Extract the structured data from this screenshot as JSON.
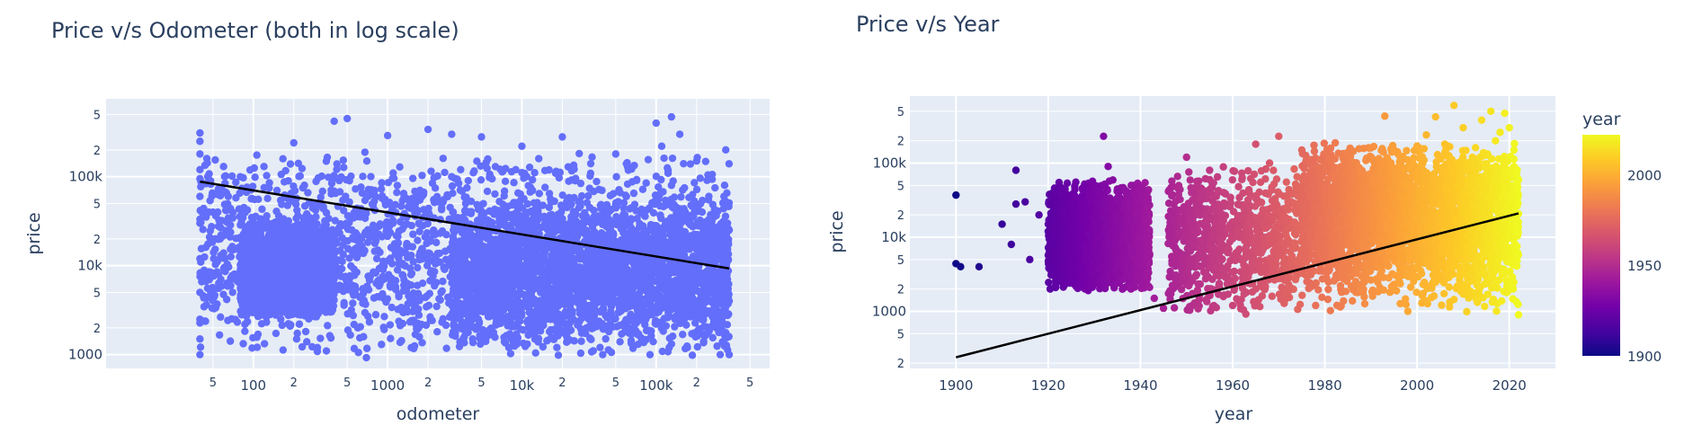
{
  "chart_data": [
    {
      "type": "scatter",
      "title": "Price v/s Odometer (both in log scale)",
      "xlabel": "odometer",
      "ylabel": "price",
      "x_scale": "log",
      "y_scale": "log",
      "xlim": [
        8,
        700000
      ],
      "ylim": [
        700,
        750000
      ],
      "grid": true,
      "marker_color": "#636efa",
      "x_ticks": [
        {
          "v": 50,
          "t": "5"
        },
        {
          "v": 100,
          "t": "100"
        },
        {
          "v": 200,
          "t": "2"
        },
        {
          "v": 500,
          "t": "5"
        },
        {
          "v": 1000,
          "t": "1000"
        },
        {
          "v": 2000,
          "t": "2"
        },
        {
          "v": 5000,
          "t": "5"
        },
        {
          "v": 10000,
          "t": "10k"
        },
        {
          "v": 20000,
          "t": "2"
        },
        {
          "v": 50000,
          "t": "5"
        },
        {
          "v": 100000,
          "t": "100k"
        },
        {
          "v": 200000,
          "t": "2"
        },
        {
          "v": 500000,
          "t": "5"
        }
      ],
      "y_ticks": [
        {
          "v": 1000,
          "t": "1000"
        },
        {
          "v": 2000,
          "t": "2"
        },
        {
          "v": 5000,
          "t": "5"
        },
        {
          "v": 10000,
          "t": "10k"
        },
        {
          "v": 20000,
          "t": "2"
        },
        {
          "v": 50000,
          "t": "5"
        },
        {
          "v": 100000,
          "t": "100k"
        },
        {
          "v": 200000,
          "t": "2"
        },
        {
          "v": 500000,
          "t": "5"
        }
      ],
      "trendline": {
        "x": [
          40,
          350000
        ],
        "y": [
          88000,
          9300
        ],
        "color": "#000000"
      },
      "points": [
        [
          40,
          310000
        ],
        [
          40,
          250000
        ],
        [
          40,
          180000
        ],
        [
          40,
          120000
        ],
        [
          40,
          95000
        ],
        [
          40,
          60000
        ],
        [
          40,
          30000
        ],
        [
          40,
          12000
        ],
        [
          40,
          5000
        ],
        [
          40,
          2500
        ],
        [
          40,
          1500
        ],
        [
          40,
          1000
        ],
        [
          45,
          160000
        ],
        [
          48,
          90000
        ],
        [
          50,
          40000
        ],
        [
          52,
          20000
        ],
        [
          55,
          8000
        ],
        [
          60,
          130000
        ],
        [
          65,
          60000
        ],
        [
          70,
          15000
        ],
        [
          75,
          7000
        ],
        [
          80,
          100000
        ],
        [
          85,
          45000
        ],
        [
          90,
          22000
        ],
        [
          95,
          9000
        ],
        [
          100,
          6000
        ],
        [
          110,
          4000
        ],
        [
          120,
          12000
        ],
        [
          130,
          3000
        ],
        [
          140,
          8000
        ],
        [
          150,
          5000
        ],
        [
          160,
          2500
        ],
        [
          170,
          14000
        ],
        [
          180,
          7000
        ],
        [
          190,
          4500
        ],
        [
          200,
          240000
        ],
        [
          210,
          1500
        ],
        [
          220,
          2200
        ],
        [
          230,
          9000
        ],
        [
          240,
          6000
        ],
        [
          250,
          30000
        ],
        [
          270,
          3000
        ],
        [
          300,
          1200
        ],
        [
          330,
          3500
        ],
        [
          350,
          1100
        ],
        [
          400,
          420000
        ],
        [
          500,
          450000
        ],
        [
          520,
          90000
        ],
        [
          550,
          20000
        ],
        [
          600,
          2000
        ],
        [
          700,
          150000
        ],
        [
          800,
          70000
        ],
        [
          900,
          1300
        ],
        [
          1000,
          290000
        ],
        [
          1100,
          110000
        ],
        [
          1200,
          18000
        ],
        [
          1300,
          3000
        ],
        [
          1500,
          1200
        ],
        [
          1800,
          60000
        ],
        [
          2000,
          340000
        ],
        [
          2200,
          25000
        ],
        [
          2500,
          5000
        ],
        [
          3000,
          300000
        ],
        [
          3500,
          120000
        ],
        [
          4000,
          2500
        ],
        [
          5000,
          280000
        ],
        [
          6000,
          40000
        ],
        [
          7000,
          8000
        ],
        [
          8000,
          1200
        ],
        [
          10000,
          220000
        ],
        [
          12000,
          70000
        ],
        [
          15000,
          15000
        ],
        [
          18000,
          3000
        ],
        [
          20000,
          280000
        ],
        [
          25000,
          90000
        ],
        [
          30000,
          25000
        ],
        [
          35000,
          5000
        ],
        [
          40000,
          1000
        ],
        [
          50000,
          180000
        ],
        [
          60000,
          60000
        ],
        [
          70000,
          12000
        ],
        [
          80000,
          2500
        ],
        [
          90000,
          1000
        ],
        [
          100000,
          400000
        ],
        [
          110000,
          220000
        ],
        [
          130000,
          80000
        ],
        [
          150000,
          20000
        ],
        [
          170000,
          5000
        ],
        [
          200000,
          150000
        ],
        [
          220000,
          40000
        ],
        [
          250000,
          9000
        ],
        [
          280000,
          2000
        ],
        [
          300000,
          1000
        ],
        [
          320000,
          60000
        ],
        [
          330000,
          200000
        ],
        [
          340000,
          30000
        ],
        [
          350000,
          4000
        ],
        [
          350000,
          1000
        ],
        [
          130000,
          470000
        ],
        [
          150000,
          300000
        ],
        [
          160000,
          140000
        ],
        [
          60000,
          140000
        ],
        [
          9000,
          120000
        ],
        [
          3000,
          100000
        ],
        [
          700,
          60000
        ],
        [
          300,
          50000
        ],
        [
          150,
          70000
        ],
        [
          120,
          130000
        ]
      ],
      "clouds": [
        {
          "x": [
            40,
            350000
          ],
          "y": [
            900,
            200000
          ]
        },
        {
          "x": [
            80,
            400
          ],
          "y": [
            2500,
            35000
          ]
        },
        {
          "x": [
            3000,
            350000
          ],
          "y": [
            1000,
            60000
          ]
        }
      ]
    },
    {
      "type": "scatter",
      "title": "Price v/s Year",
      "xlabel": "year",
      "ylabel": "price",
      "y_scale": "log",
      "xlim": [
        1890,
        2030
      ],
      "ylim": [
        170,
        800000
      ],
      "grid": true,
      "x_ticks": [
        {
          "v": 1900,
          "t": "1900"
        },
        {
          "v": 1920,
          "t": "1920"
        },
        {
          "v": 1940,
          "t": "1940"
        },
        {
          "v": 1960,
          "t": "1960"
        },
        {
          "v": 1980,
          "t": "1980"
        },
        {
          "v": 2000,
          "t": "2000"
        },
        {
          "v": 2020,
          "t": "2020"
        }
      ],
      "y_ticks": [
        {
          "v": 200,
          "t": "2"
        },
        {
          "v": 500,
          "t": "5"
        },
        {
          "v": 1000,
          "t": "1000"
        },
        {
          "v": 2000,
          "t": "2"
        },
        {
          "v": 5000,
          "t": "5"
        },
        {
          "v": 10000,
          "t": "10k"
        },
        {
          "v": 20000,
          "t": "2"
        },
        {
          "v": 50000,
          "t": "5"
        },
        {
          "v": 100000,
          "t": "100k"
        },
        {
          "v": 200000,
          "t": "2"
        },
        {
          "v": 500000,
          "t": "5"
        }
      ],
      "trendline": {
        "x": [
          1900,
          2022
        ],
        "y": [
          240,
          21000
        ],
        "color": "#000000"
      },
      "colorbar": {
        "title": "year",
        "range": [
          1900,
          2022
        ],
        "ticks": [
          {
            "v": 1900,
            "t": "1900"
          },
          {
            "v": 1950,
            "t": "1950"
          },
          {
            "v": 2000,
            "t": "2000"
          }
        ],
        "colors": [
          "#0d0887",
          "#46039f",
          "#7201a8",
          "#9c179e",
          "#bd3786",
          "#d8576b",
          "#ed7953",
          "#fb9f3a",
          "#fdca26",
          "#f0f921"
        ]
      },
      "points": [
        [
          1900,
          37000
        ],
        [
          1900,
          4400
        ],
        [
          1901,
          4000
        ],
        [
          1905,
          4000
        ],
        [
          1910,
          15000
        ],
        [
          1912,
          8000
        ],
        [
          1913,
          80000
        ],
        [
          1913,
          28000
        ],
        [
          1915,
          30000
        ],
        [
          1916,
          5000
        ],
        [
          1918,
          20000
        ],
        [
          1920,
          12000
        ],
        [
          1922,
          25000
        ],
        [
          1924,
          8000
        ],
        [
          1925,
          2500
        ],
        [
          1928,
          2000
        ],
        [
          1930,
          6000
        ],
        [
          1932,
          230000
        ],
        [
          1933,
          90000
        ],
        [
          1935,
          3500
        ],
        [
          1938,
          50000
        ],
        [
          1941,
          15000
        ],
        [
          1943,
          1500
        ],
        [
          1945,
          1100
        ],
        [
          1948,
          6000
        ],
        [
          1950,
          120000
        ],
        [
          1952,
          3000
        ],
        [
          1955,
          80000
        ],
        [
          1958,
          40000
        ],
        [
          1960,
          1200
        ],
        [
          1962,
          60000
        ],
        [
          1965,
          180000
        ],
        [
          1968,
          100000
        ],
        [
          1970,
          230000
        ],
        [
          1972,
          30000
        ],
        [
          1975,
          150000
        ],
        [
          1978,
          1200
        ],
        [
          1980,
          90000
        ],
        [
          1985,
          140000
        ],
        [
          1988,
          20000
        ],
        [
          1990,
          160000
        ],
        [
          1993,
          430000
        ],
        [
          1995,
          150000
        ],
        [
          1998,
          1000
        ],
        [
          2000,
          170000
        ],
        [
          2002,
          240000
        ],
        [
          2004,
          420000
        ],
        [
          2006,
          180000
        ],
        [
          2008,
          600000
        ],
        [
          2010,
          300000
        ],
        [
          2012,
          120000
        ],
        [
          2014,
          380000
        ],
        [
          2016,
          500000
        ],
        [
          2017,
          200000
        ],
        [
          2018,
          260000
        ],
        [
          2019,
          470000
        ],
        [
          2020,
          300000
        ],
        [
          2021,
          150000
        ],
        [
          2022,
          900
        ],
        [
          2022,
          60000
        ]
      ],
      "clouds": [
        {
          "x": [
            1920,
            1942
          ],
          "y": [
            1800,
            60000
          ]
        },
        {
          "x": [
            1946,
            2022
          ],
          "y": [
            900,
            100000
          ]
        },
        {
          "x": [
            1975,
            2022
          ],
          "y": [
            3000,
            200000
          ]
        }
      ]
    }
  ]
}
